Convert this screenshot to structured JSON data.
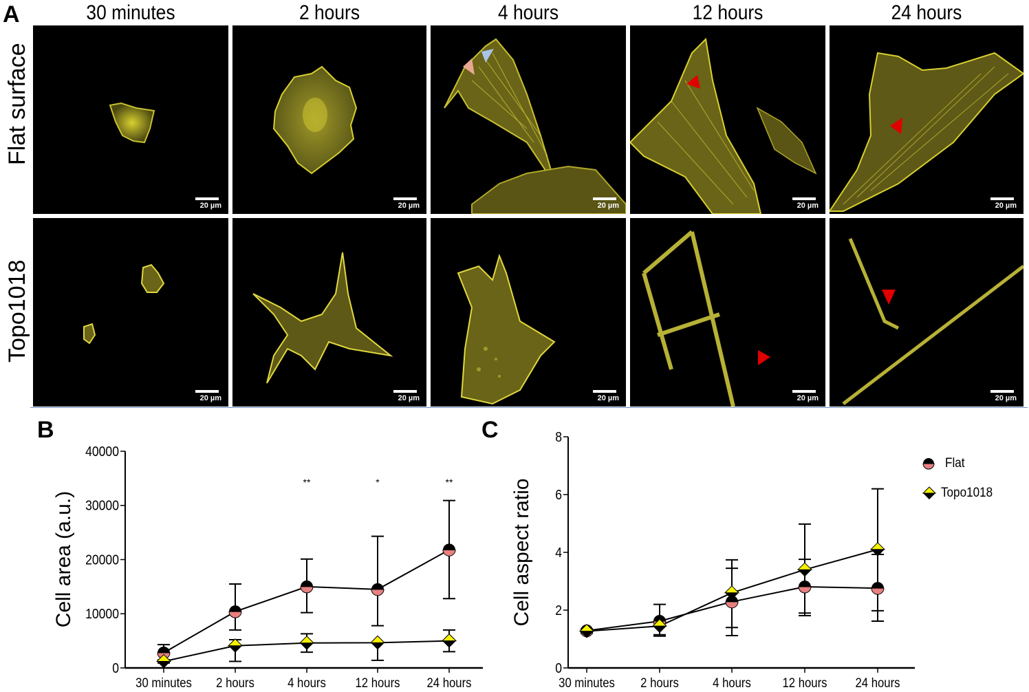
{
  "panel_a": {
    "letter": "A",
    "columns": [
      "30 minutes",
      "2 hours",
      "4 hours",
      "12 hours",
      "24 hours"
    ],
    "rows": [
      "Flat surface",
      "Topo1018"
    ],
    "scale_bar_label": "20 µm",
    "arrowhead_colors": {
      "peach": "#e8a890",
      "blue": "#a9c4e8",
      "red": "#e00000"
    },
    "stain_color": "#e6e03a"
  },
  "panel_b": {
    "letter": "B"
  },
  "panel_c": {
    "letter": "C"
  },
  "legend": {
    "flat": "Flat",
    "topo": "Topo1018"
  },
  "colors": {
    "flat_top": "#000000",
    "flat_bottom": "#e88080",
    "topo_top": "#f5f000",
    "topo_bottom": "#000000"
  },
  "chart_data": [
    {
      "type": "line",
      "title": "",
      "xlabel": "",
      "ylabel": "Cell area (a.u.)",
      "categories": [
        "30 minutes",
        "2 hours",
        "4 hours",
        "12 hours",
        "24 hours"
      ],
      "ylim": [
        0,
        40000
      ],
      "yticks": [
        0,
        10000,
        20000,
        30000,
        40000
      ],
      "grid": false,
      "series": [
        {
          "name": "Flat",
          "values": [
            2800,
            10400,
            15000,
            14500,
            21800
          ],
          "err_upper": [
            4300,
            15500,
            20100,
            24300,
            30900
          ],
          "err_lower": [
            1400,
            7000,
            10200,
            7800,
            12800
          ]
        },
        {
          "name": "Topo1018",
          "values": [
            1200,
            4100,
            4600,
            4650,
            5000
          ],
          "err_upper": [
            1500,
            5200,
            6300,
            4700,
            7000
          ],
          "err_lower": [
            900,
            1200,
            2900,
            1400,
            3000
          ]
        }
      ],
      "annotations": [
        {
          "category": "4 hours",
          "text": "**"
        },
        {
          "category": "12 hours",
          "text": "*"
        },
        {
          "category": "24 hours",
          "text": "**"
        }
      ]
    },
    {
      "type": "line",
      "title": "",
      "xlabel": "",
      "ylabel": "Cell aspect ratio",
      "categories": [
        "30 minutes",
        "2 hours",
        "4 hours",
        "12 hours",
        "24 hours"
      ],
      "ylim": [
        0,
        8
      ],
      "yticks": [
        0,
        2,
        4,
        6,
        8
      ],
      "grid": false,
      "legend_position": "upper right",
      "series": [
        {
          "name": "Flat",
          "values": [
            1.29,
            1.62,
            2.29,
            2.81,
            2.76
          ],
          "err_upper": [
            1.35,
            2.2,
            3.74,
            4.98,
            3.93
          ],
          "err_lower": [
            1.22,
            1.15,
            1.12,
            1.81,
            1.62
          ]
        },
        {
          "name": "Topo1018",
          "values": [
            1.27,
            1.45,
            2.6,
            3.4,
            4.1
          ],
          "err_upper": [
            1.3,
            1.6,
            3.45,
            3.76,
            6.2
          ],
          "err_lower": [
            1.2,
            1.1,
            1.4,
            1.9,
            1.98
          ]
        }
      ]
    }
  ]
}
